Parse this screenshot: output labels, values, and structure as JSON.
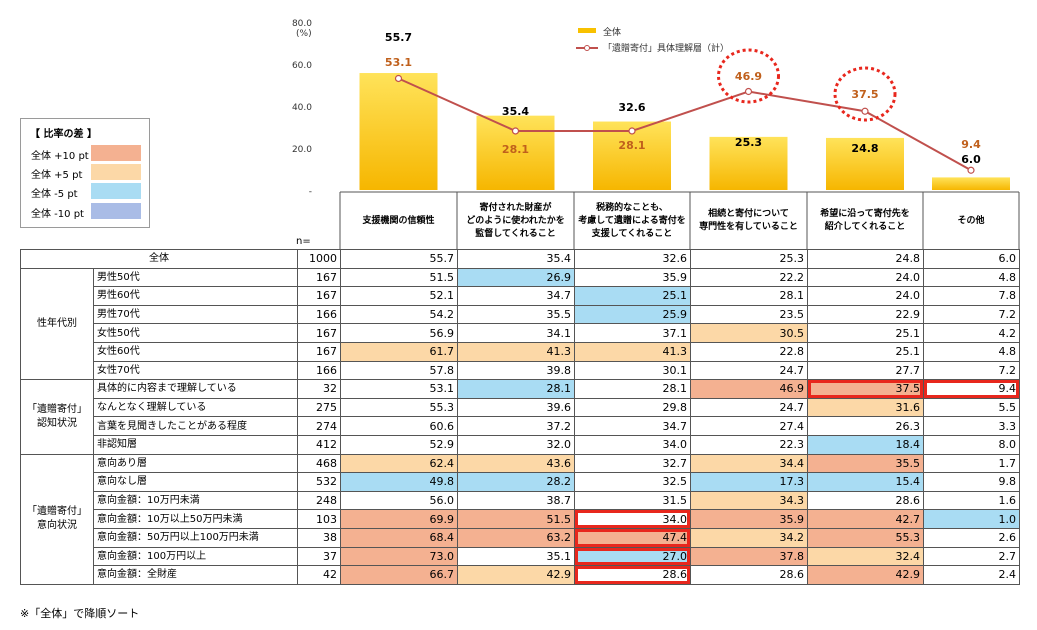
{
  "chart_data": {
    "type": "bar",
    "title": "",
    "ylabel": "(%)",
    "ylim": [
      0,
      80
    ],
    "ytick_labels": [
      "80.0",
      "60.0",
      "40.0",
      "20.0",
      "-"
    ],
    "yticks": [
      80,
      60,
      40,
      20,
      0
    ],
    "categories": [
      "支援機関の信頼性",
      "寄付された財産がどのように使われたかを監督してくれること",
      "税務的なことも、考慮して遺贈による寄付を支援してくれること",
      "相続と寄付について専門性を有していること",
      "希望に沿って寄付先を紹介してくれること",
      "その他"
    ],
    "category_lines": [
      [
        "支援機関の信頼性"
      ],
      [
        "寄付された財産が",
        "どのように使われたかを",
        "監督してくれること"
      ],
      [
        "税務的なことも、",
        "考慮して遺贈による寄付を",
        "支援してくれること"
      ],
      [
        "相続と寄付について",
        "専門性を有していること"
      ],
      [
        "希望に沿って寄付先を",
        "紹介してくれること"
      ],
      [
        "その他"
      ]
    ],
    "series": [
      {
        "name": "全体",
        "type": "bar",
        "values": [
          55.7,
          35.4,
          32.6,
          25.3,
          24.8,
          6.0
        ],
        "labels": [
          "55.7",
          "35.4",
          "32.6",
          "25.3",
          "24.8",
          "6.0"
        ],
        "color": "#f8c100"
      },
      {
        "name": "「遺贈寄付」具体理解層（計）",
        "type": "line",
        "values": [
          53.1,
          28.1,
          28.1,
          46.9,
          37.5,
          9.4
        ],
        "labels": [
          "53.1",
          "28.1",
          "28.1",
          "46.9",
          "37.5",
          "9.4"
        ],
        "color": "#c0504d",
        "circled": [
          3,
          4
        ]
      }
    ],
    "legend_position": "top-center"
  },
  "legend_box": {
    "title": "【 比率の差 】",
    "items": [
      {
        "label": "全体 +10 pt",
        "color": "#f4b191"
      },
      {
        "label": "全体 +5 pt",
        "color": "#fcd8a7"
      },
      {
        "label": "全体 -5 pt",
        "color": "#a9dcf3"
      },
      {
        "label": "全体 -10 pt",
        "color": "#a9bce6"
      }
    ]
  },
  "table": {
    "n_label": "n=",
    "rows": [
      {
        "group": "",
        "label": "全体",
        "n": "1000",
        "values": [
          "55.7",
          "35.4",
          "32.6",
          "25.3",
          "24.8",
          "6.0"
        ],
        "fills": [
          "",
          "",
          "",
          "",
          "",
          ""
        ]
      },
      {
        "group": "性年代別",
        "label": "男性50代",
        "n": "167",
        "values": [
          "51.5",
          "26.9",
          "35.9",
          "22.2",
          "24.0",
          "4.8"
        ],
        "fills": [
          "",
          "m5",
          "",
          "",
          "",
          ""
        ]
      },
      {
        "group": "性年代別",
        "label": "男性60代",
        "n": "167",
        "values": [
          "52.1",
          "34.7",
          "25.1",
          "28.1",
          "24.0",
          "7.8"
        ],
        "fills": [
          "",
          "",
          "m5",
          "",
          "",
          ""
        ]
      },
      {
        "group": "性年代別",
        "label": "男性70代",
        "n": "166",
        "values": [
          "54.2",
          "35.5",
          "25.9",
          "23.5",
          "22.9",
          "7.2"
        ],
        "fills": [
          "",
          "",
          "m5",
          "",
          "",
          ""
        ]
      },
      {
        "group": "性年代別",
        "label": "女性50代",
        "n": "167",
        "values": [
          "56.9",
          "34.1",
          "37.1",
          "30.5",
          "25.1",
          "4.2"
        ],
        "fills": [
          "",
          "",
          "",
          "p5",
          "",
          ""
        ]
      },
      {
        "group": "性年代別",
        "label": "女性60代",
        "n": "167",
        "values": [
          "61.7",
          "41.3",
          "41.3",
          "22.8",
          "25.1",
          "4.8"
        ],
        "fills": [
          "p5",
          "p5",
          "p5",
          "",
          "",
          ""
        ]
      },
      {
        "group": "性年代別",
        "label": "女性70代",
        "n": "166",
        "values": [
          "57.8",
          "39.8",
          "30.1",
          "24.7",
          "27.7",
          "7.2"
        ],
        "fills": [
          "",
          "",
          "",
          "",
          "",
          ""
        ]
      },
      {
        "group": "「遺贈寄付」認知状況",
        "label": "具体的に内容まで理解している",
        "n": "32",
        "values": [
          "53.1",
          "28.1",
          "28.1",
          "46.9",
          "37.5",
          "9.4"
        ],
        "fills": [
          "",
          "m5",
          "",
          "p10",
          "p10",
          ""
        ]
      },
      {
        "group": "「遺贈寄付」認知状況",
        "label": "なんとなく理解している",
        "n": "275",
        "values": [
          "55.3",
          "39.6",
          "29.8",
          "24.7",
          "31.6",
          "5.5"
        ],
        "fills": [
          "",
          "",
          "",
          "",
          "p5",
          ""
        ]
      },
      {
        "group": "「遺贈寄付」認知状況",
        "label": "言葉を見聞きしたことがある程度",
        "n": "274",
        "values": [
          "60.6",
          "37.2",
          "34.7",
          "27.4",
          "26.3",
          "3.3"
        ],
        "fills": [
          "",
          "",
          "",
          "",
          "",
          ""
        ]
      },
      {
        "group": "「遺贈寄付」認知状況",
        "label": "非認知層",
        "n": "412",
        "values": [
          "52.9",
          "32.0",
          "34.0",
          "22.3",
          "18.4",
          "8.0"
        ],
        "fills": [
          "",
          "",
          "",
          "",
          "m5",
          ""
        ]
      },
      {
        "group": "「遺贈寄付」意向状況",
        "label": "意向あり層",
        "n": "468",
        "values": [
          "62.4",
          "43.6",
          "32.7",
          "34.4",
          "35.5",
          "1.7"
        ],
        "fills": [
          "p5",
          "p5",
          "",
          "p5",
          "p10",
          ""
        ]
      },
      {
        "group": "「遺贈寄付」意向状況",
        "label": "意向なし層",
        "n": "532",
        "values": [
          "49.8",
          "28.2",
          "32.5",
          "17.3",
          "15.4",
          "9.8"
        ],
        "fills": [
          "m5",
          "m5",
          "",
          "m5",
          "m5",
          ""
        ]
      },
      {
        "group": "「遺贈寄付」意向状況",
        "label": "意向金額：10万円未満",
        "n": "248",
        "values": [
          "56.0",
          "38.7",
          "31.5",
          "34.3",
          "28.6",
          "1.6"
        ],
        "fills": [
          "",
          "",
          "",
          "p5",
          "",
          ""
        ]
      },
      {
        "group": "「遺贈寄付」意向状況",
        "label": "意向金額：10万以上50万円未満",
        "n": "103",
        "values": [
          "69.9",
          "51.5",
          "34.0",
          "35.9",
          "42.7",
          "1.0"
        ],
        "fills": [
          "p10",
          "p10",
          "",
          "p10",
          "p10",
          "m5"
        ]
      },
      {
        "group": "「遺贈寄付」意向状況",
        "label": "意向金額：50万円以上100万円未満",
        "n": "38",
        "values": [
          "68.4",
          "63.2",
          "47.4",
          "34.2",
          "55.3",
          "2.6"
        ],
        "fills": [
          "p10",
          "p10",
          "p10",
          "p5",
          "p10",
          ""
        ]
      },
      {
        "group": "「遺贈寄付」意向状況",
        "label": "意向金額：100万円以上",
        "n": "37",
        "values": [
          "73.0",
          "35.1",
          "27.0",
          "37.8",
          "32.4",
          "2.7"
        ],
        "fills": [
          "p10",
          "",
          "m5",
          "p10",
          "p5",
          ""
        ]
      },
      {
        "group": "「遺贈寄付」意向状況",
        "label": "意向金額：全財産",
        "n": "42",
        "values": [
          "66.7",
          "42.9",
          "28.6",
          "28.6",
          "42.9",
          "2.4"
        ],
        "fills": [
          "p10",
          "p5",
          "",
          "",
          "p10",
          ""
        ]
      }
    ],
    "groups": [
      {
        "lines": [
          "性年代別"
        ]
      },
      {
        "lines": [
          "「遺贈寄付」",
          "認知状況"
        ]
      },
      {
        "lines": [
          "「遺贈寄付」",
          "意向状況"
        ]
      }
    ]
  },
  "footnote": "※「全体」で降順ソート"
}
